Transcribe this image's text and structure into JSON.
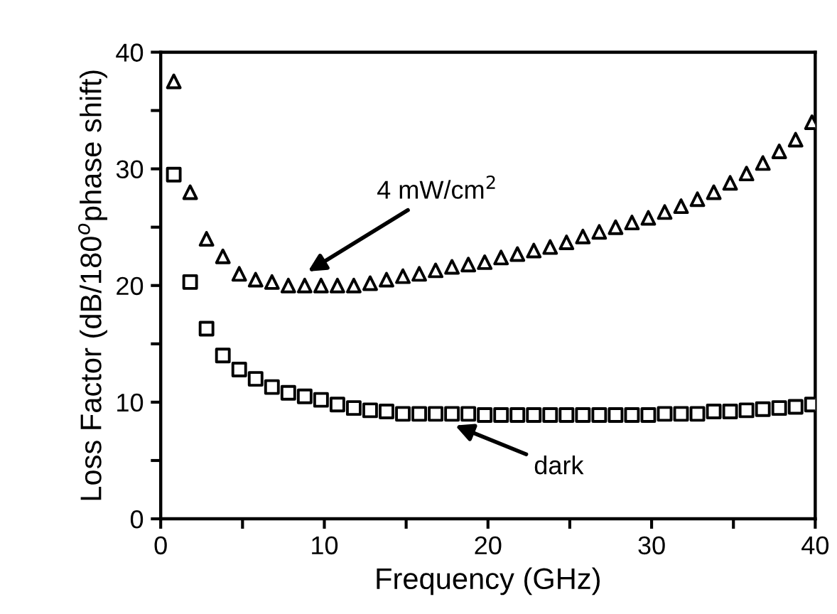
{
  "chart_data": {
    "type": "scatter",
    "xlabel": "Frequency (GHz)",
    "ylabel": "Loss Factor (dB/180$^{o}$phase shift)",
    "xlim": [
      0,
      40
    ],
    "ylim": [
      0,
      40
    ],
    "xticks": [
      0,
      {
        "value": 5,
        "label": null
      },
      10,
      {
        "value": 15,
        "label": null
      },
      20,
      {
        "value": 25,
        "label": null
      },
      30,
      {
        "value": 35,
        "label": null
      },
      40
    ],
    "yticks": [
      0,
      {
        "value": 5,
        "label": null
      },
      10,
      {
        "value": 15,
        "label": null
      },
      20,
      {
        "value": 25,
        "label": null
      },
      30,
      {
        "value": 35,
        "label": null
      },
      40
    ],
    "grid": false,
    "legend": false,
    "series": [
      {
        "color": "#000000",
        "marker": "triangle",
        "x": [
          0.8,
          1.8,
          2.8,
          3.8,
          4.8,
          5.8,
          6.8,
          7.8,
          8.8,
          9.8,
          10.8,
          11.8,
          12.8,
          13.8,
          14.8,
          15.8,
          16.8,
          17.8,
          18.8,
          19.8,
          20.8,
          21.8,
          22.8,
          23.8,
          24.8,
          25.8,
          26.8,
          27.8,
          28.8,
          29.8,
          30.8,
          31.8,
          32.8,
          33.8,
          34.8,
          35.8,
          36.8,
          37.8,
          38.8,
          39.8
        ],
        "values": [
          37.5,
          28,
          24,
          22.5,
          21,
          20.5,
          20.3,
          20,
          20,
          20,
          20,
          20,
          20.2,
          20.5,
          20.8,
          21,
          21.3,
          21.6,
          21.8,
          22,
          22.4,
          22.7,
          23,
          23.3,
          23.7,
          24.2,
          24.6,
          25,
          25.4,
          25.8,
          26.3,
          26.8,
          27.4,
          28,
          28.8,
          29.6,
          30.5,
          31.5,
          32.5,
          34
        ]
      },
      {
        "color": "#000000",
        "marker": "square",
        "x": [
          0.8,
          1.8,
          2.8,
          3.8,
          4.8,
          5.8,
          6.8,
          7.8,
          8.8,
          9.8,
          10.8,
          11.8,
          12.8,
          13.8,
          14.8,
          15.8,
          16.8,
          17.8,
          18.8,
          19.8,
          20.8,
          21.8,
          22.8,
          23.8,
          24.8,
          25.8,
          26.8,
          27.8,
          28.8,
          29.8,
          30.8,
          31.8,
          32.8,
          33.8,
          34.8,
          35.8,
          36.8,
          37.8,
          38.8,
          39.8
        ],
        "values": [
          29.5,
          20.3,
          16.3,
          14,
          12.8,
          12,
          11.3,
          10.8,
          10.5,
          10.2,
          9.8,
          9.5,
          9.3,
          9.2,
          9,
          9,
          9,
          9,
          9,
          8.9,
          8.9,
          8.9,
          8.9,
          8.9,
          8.9,
          8.9,
          8.9,
          8.9,
          8.9,
          8.9,
          9,
          9,
          9,
          9.2,
          9.2,
          9.3,
          9.4,
          9.5,
          9.6,
          9.8
        ]
      }
    ],
    "annotations": [
      "4 mW/cm$^{2}$",
      "dark"
    ]
  }
}
